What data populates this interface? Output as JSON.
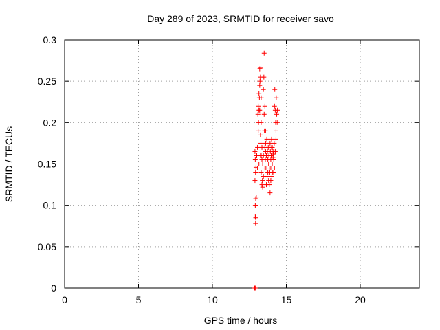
{
  "chart_data": {
    "type": "scatter",
    "title": "Day 289 of 2023, SRMTID for receiver savo",
    "xlabel": "GPS time / hours",
    "ylabel": "SRMTID / TECUs",
    "xlim": [
      0,
      24
    ],
    "ylim": [
      0,
      0.3
    ],
    "xticks": [
      "0",
      "5",
      "10",
      "15",
      "20"
    ],
    "yticks": [
      "0",
      "0.05",
      "0.1",
      "0.15",
      "0.2",
      "0.25",
      "0.3"
    ],
    "grid": true,
    "marker": "+",
    "color": "#ff0000",
    "series": [
      {
        "name": "savo",
        "points": [
          [
            12.85,
            0.0
          ],
          [
            12.88,
            0.0
          ],
          [
            12.9,
            0.0
          ],
          [
            12.86,
            0.0
          ],
          [
            12.92,
            0.078
          ],
          [
            12.93,
            0.085
          ],
          [
            12.9,
            0.086
          ],
          [
            12.95,
            0.1
          ],
          [
            12.93,
            0.108
          ],
          [
            12.97,
            0.11
          ],
          [
            12.9,
            0.1
          ],
          [
            12.88,
            0.13
          ],
          [
            12.92,
            0.14
          ],
          [
            12.95,
            0.145
          ],
          [
            12.9,
            0.155
          ],
          [
            12.88,
            0.165
          ],
          [
            12.95,
            0.146
          ],
          [
            13.05,
            0.17
          ],
          [
            13.1,
            0.19
          ],
          [
            13.12,
            0.2
          ],
          [
            13.08,
            0.21
          ],
          [
            13.15,
            0.215
          ],
          [
            13.1,
            0.22
          ],
          [
            13.18,
            0.23
          ],
          [
            13.15,
            0.235
          ],
          [
            13.2,
            0.245
          ],
          [
            13.22,
            0.25
          ],
          [
            13.25,
            0.255
          ],
          [
            13.2,
            0.265
          ],
          [
            13.28,
            0.266
          ],
          [
            13.3,
            0.2
          ],
          [
            13.25,
            0.185
          ],
          [
            13.28,
            0.175
          ],
          [
            13.3,
            0.16
          ],
          [
            13.35,
            0.155
          ],
          [
            13.3,
            0.14
          ],
          [
            13.38,
            0.13
          ],
          [
            13.35,
            0.125
          ],
          [
            13.4,
            0.122
          ],
          [
            13.45,
            0.135
          ],
          [
            13.4,
            0.15
          ],
          [
            13.5,
            0.284
          ],
          [
            13.48,
            0.255
          ],
          [
            13.45,
            0.24
          ],
          [
            13.5,
            0.21
          ],
          [
            13.55,
            0.22
          ],
          [
            13.52,
            0.19
          ],
          [
            13.55,
            0.17
          ],
          [
            13.6,
            0.165
          ],
          [
            13.58,
            0.155
          ],
          [
            13.62,
            0.145
          ],
          [
            13.65,
            0.125
          ],
          [
            13.6,
            0.175
          ],
          [
            13.68,
            0.18
          ],
          [
            13.7,
            0.16
          ],
          [
            13.72,
            0.165
          ],
          [
            13.75,
            0.155
          ],
          [
            13.78,
            0.17
          ],
          [
            13.8,
            0.15
          ],
          [
            13.82,
            0.16
          ],
          [
            13.85,
            0.145
          ],
          [
            13.88,
            0.14
          ],
          [
            13.9,
            0.115
          ],
          [
            13.92,
            0.165
          ],
          [
            13.95,
            0.155
          ],
          [
            13.98,
            0.16
          ],
          [
            14.0,
            0.17
          ],
          [
            14.02,
            0.135
          ],
          [
            14.05,
            0.15
          ],
          [
            14.08,
            0.14
          ],
          [
            14.1,
            0.158
          ],
          [
            14.12,
            0.162
          ],
          [
            14.15,
            0.155
          ],
          [
            14.18,
            0.175
          ],
          [
            14.2,
            0.22
          ],
          [
            14.22,
            0.24
          ],
          [
            14.25,
            0.215
          ],
          [
            14.28,
            0.2
          ],
          [
            14.3,
            0.19
          ],
          [
            14.32,
            0.23
          ],
          [
            14.35,
            0.21
          ],
          [
            14.3,
            0.18
          ],
          [
            14.25,
            0.165
          ],
          [
            14.38,
            0.2
          ],
          [
            14.4,
            0.215
          ],
          [
            14.2,
            0.145
          ],
          [
            14.15,
            0.14
          ],
          [
            13.95,
            0.13
          ],
          [
            13.85,
            0.125
          ],
          [
            13.75,
            0.14
          ],
          [
            13.65,
            0.16
          ],
          [
            13.55,
            0.145
          ],
          [
            13.45,
            0.16
          ],
          [
            13.35,
            0.17
          ],
          [
            13.25,
            0.16
          ],
          [
            13.15,
            0.15
          ],
          [
            13.05,
            0.145
          ],
          [
            13.0,
            0.16
          ],
          [
            13.2,
            0.215
          ],
          [
            13.3,
            0.23
          ],
          [
            13.6,
            0.19
          ],
          [
            13.9,
            0.175
          ],
          [
            14.0,
            0.18
          ],
          [
            14.1,
            0.165
          ],
          [
            14.05,
            0.17
          ],
          [
            13.95,
            0.145
          ],
          [
            13.8,
            0.13
          ],
          [
            13.7,
            0.135
          ]
        ]
      }
    ]
  }
}
